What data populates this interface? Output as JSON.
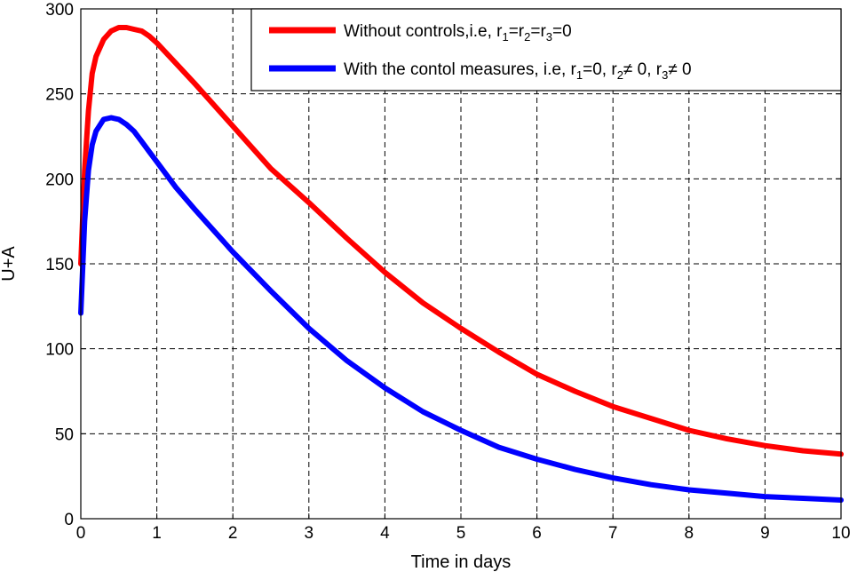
{
  "chart_data": {
    "type": "line",
    "xlabel": "Time in days",
    "ylabel": "U+A",
    "xlim": [
      0,
      10
    ],
    "ylim": [
      0,
      300
    ],
    "xticks": [
      "0",
      "1",
      "2",
      "3",
      "4",
      "5",
      "6",
      "7",
      "8",
      "9",
      "10"
    ],
    "yticks": [
      "0",
      "50",
      "100",
      "150",
      "200",
      "250",
      "300"
    ],
    "grid": true,
    "legend_position": "top-right",
    "series": [
      {
        "name": "Without controls,i.e, r1=r2=r3=0",
        "color": "#ff0000",
        "x": [
          0,
          0.05,
          0.1,
          0.15,
          0.2,
          0.3,
          0.4,
          0.5,
          0.6,
          0.7,
          0.8,
          0.9,
          1.0,
          1.25,
          1.5,
          2.0,
          2.5,
          3.0,
          3.5,
          4.0,
          4.5,
          5.0,
          5.5,
          6.0,
          6.5,
          7.0,
          7.5,
          8.0,
          8.5,
          9.0,
          9.5,
          10.0
        ],
        "y": [
          150,
          205,
          240,
          262,
          272,
          282,
          287,
          289,
          289,
          288,
          287,
          284,
          280,
          268,
          256,
          231,
          206,
          186,
          165,
          145,
          127,
          112,
          98,
          85,
          75,
          66,
          59,
          52,
          47,
          43,
          40,
          38
        ]
      },
      {
        "name": "With the contol measures, i.e, r1=0, r2≠ 0, r3≠ 0",
        "color": "#0000ff",
        "x": [
          0,
          0.05,
          0.1,
          0.15,
          0.2,
          0.3,
          0.4,
          0.5,
          0.6,
          0.7,
          0.8,
          0.9,
          1.0,
          1.25,
          1.5,
          2.0,
          2.5,
          3.0,
          3.5,
          4.0,
          4.5,
          5.0,
          5.5,
          6.0,
          6.5,
          7.0,
          7.5,
          8.0,
          8.5,
          9.0,
          9.5,
          10.0
        ],
        "y": [
          121,
          175,
          205,
          220,
          228,
          235,
          236,
          235,
          232,
          228,
          222,
          216,
          210,
          195,
          182,
          157,
          134,
          112,
          93,
          77,
          63,
          52,
          42,
          35,
          29,
          24,
          20,
          17,
          15,
          13,
          12,
          11
        ]
      }
    ],
    "legend": [
      {
        "parts": [
          [
            "t",
            "Without controls,i.e, r"
          ],
          [
            "s",
            "1"
          ],
          [
            "t",
            "=r"
          ],
          [
            "s",
            "2"
          ],
          [
            "t",
            "=r"
          ],
          [
            "s",
            "3"
          ],
          [
            "t",
            "=0"
          ]
        ]
      },
      {
        "parts": [
          [
            "t",
            "With the contol measures, i.e, r"
          ],
          [
            "s",
            "1"
          ],
          [
            "t",
            "=0, r"
          ],
          [
            "s",
            "2"
          ],
          [
            "t",
            "≠ 0, r"
          ],
          [
            "s",
            "3"
          ],
          [
            "t",
            "≠ 0"
          ]
        ]
      }
    ]
  }
}
